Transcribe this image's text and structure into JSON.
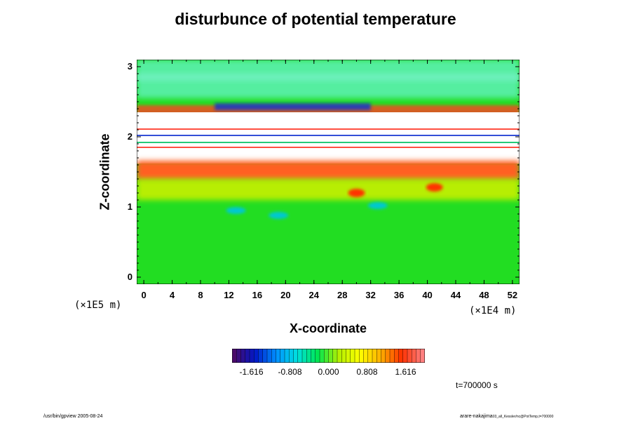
{
  "chart_data": {
    "type": "heatmap",
    "title": "disturbunce of potential temperature",
    "xlabel": "X-coordinate",
    "ylabel": "Z-coordinate",
    "x_unit": "(×1E4 m)",
    "y_unit": "(×1E5 m)",
    "xlim": [
      -1,
      53
    ],
    "ylim": [
      -0.1,
      3.1
    ],
    "x_ticks": [
      "0",
      "4",
      "8",
      "12",
      "16",
      "20",
      "24",
      "28",
      "32",
      "36",
      "40",
      "44",
      "48",
      "52"
    ],
    "y_ticks": [
      "0",
      "1",
      "2",
      "3"
    ],
    "colorbar": {
      "range": [
        -2.02,
        2.02
      ],
      "ticks": [
        "-1.616",
        "-0.808",
        "0.000",
        "0.808",
        "1.616"
      ],
      "colors": [
        "#4a0a6a",
        "#0018c8",
        "#0090ff",
        "#00e0e0",
        "#00e650",
        "#b4f000",
        "#ffff00",
        "#ffb000",
        "#ff3000",
        "#ff8080"
      ]
    },
    "colormap_stops": {
      "background": "#22dd22",
      "upper_band": "#55eea0",
      "warm_layer": "#ff6020",
      "white_gap": "#ffffff"
    },
    "time_label": "t=700000 s"
  },
  "footer": {
    "left": "/usr/bin/gpview 2005-08-24",
    "right_main": "arare-nakajima",
    "right_sub": "03_all_Kessler/nc@PotTemp,t=700000"
  }
}
